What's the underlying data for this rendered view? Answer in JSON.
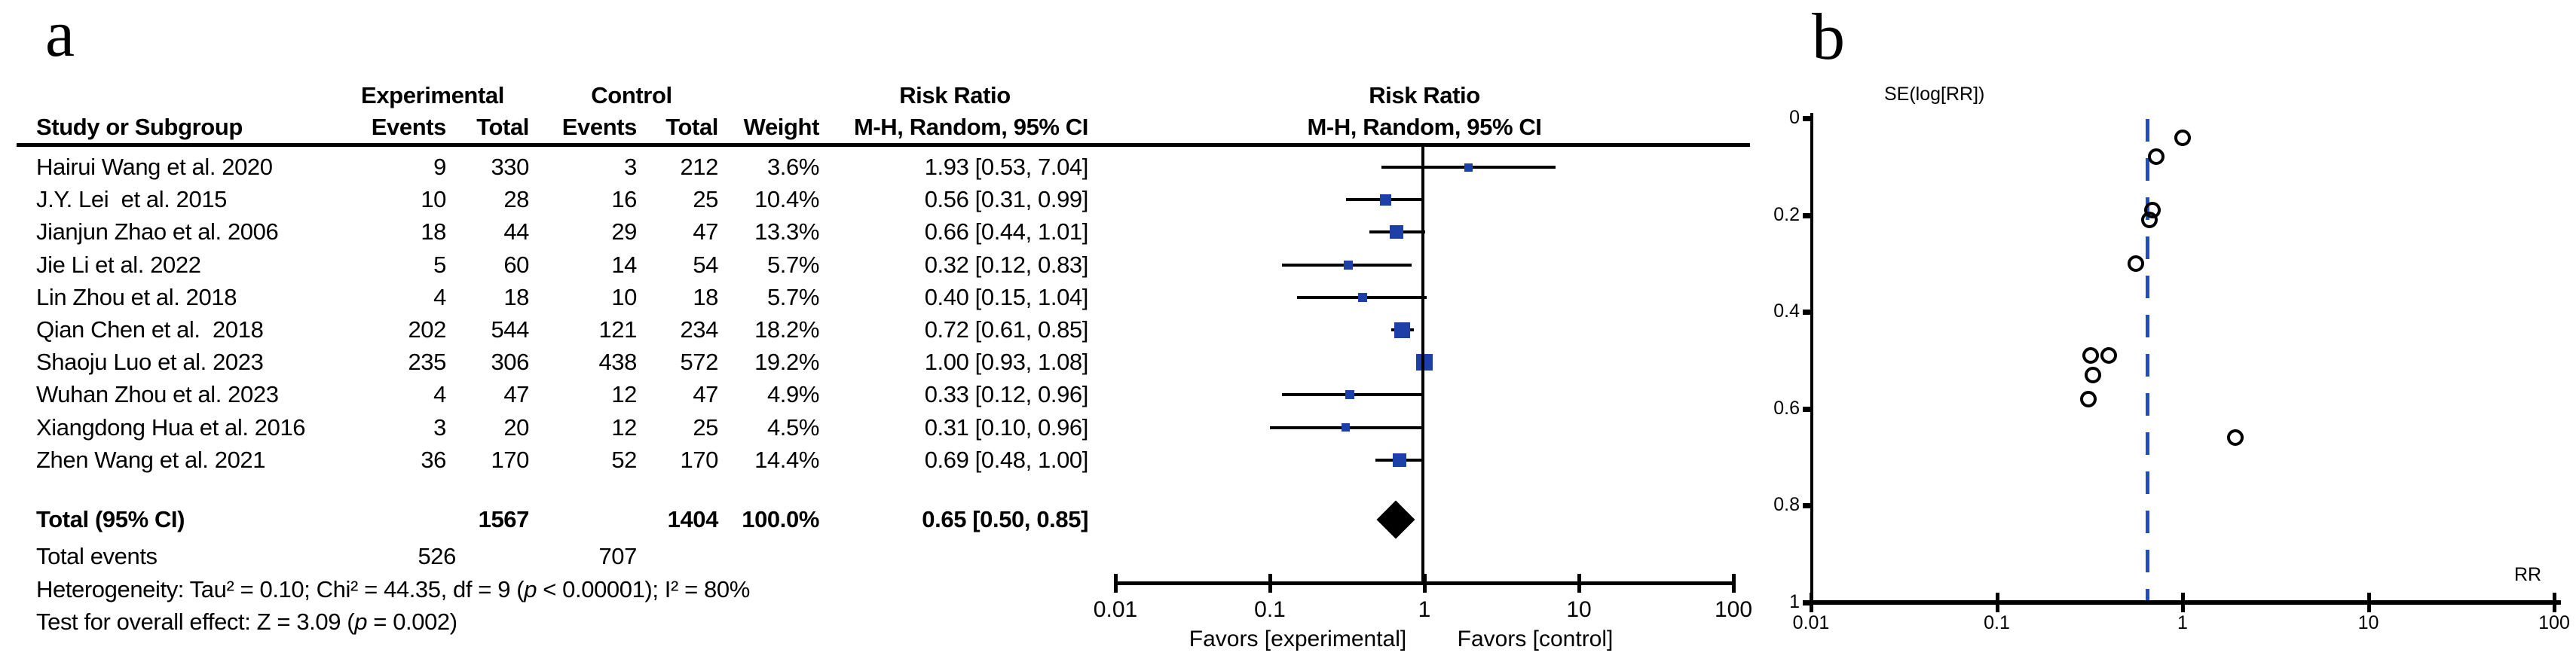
{
  "colors": {
    "marker_blue": "#1c3fa8",
    "funnel_dash_blue": "#1d4fbe",
    "line_black": "#000000"
  },
  "panels": {
    "a": {
      "label": "a",
      "table": {
        "group_headers": {
          "experimental": "Experimental",
          "control": "Control",
          "risk_ratio": "Risk Ratio"
        },
        "col_headers": {
          "study": "Study or Subgroup",
          "exp_events": "Events",
          "exp_total": "Total",
          "ctl_events": "Events",
          "ctl_total": "Total",
          "weight": "Weight",
          "mh": "M-H, Random, 95% CI"
        },
        "plot_header": {
          "line1": "Risk Ratio",
          "line2": "M-H, Random, 95% CI"
        },
        "total_row": {
          "label": "Total (95% CI)",
          "exp_total": "1567",
          "ctl_total": "1404",
          "weight": "100.0%",
          "rr_ci_text": "0.65 [0.50, 0.85]"
        },
        "total_events": {
          "label": "Total events",
          "exp": "526",
          "ctl": "707"
        },
        "heterogeneity": {
          "pre": "Heterogeneity: Tau² = 0.10; Chi² = 44.35, df = 9 (",
          "p": "p",
          "post": " < 0.00001); I² = 80%"
        },
        "overall_effect": {
          "pre": "Test for overall effect: Z = 3.09 (",
          "p": "p",
          "post": " = 0.002)"
        }
      },
      "axis": {
        "favors_left": "Favors [experimental]",
        "favors_right": "Favors [control]"
      }
    },
    "b": {
      "label": "b",
      "ylabel": "SE(log[RR])",
      "xlabel": "RR"
    }
  },
  "chart_data": [
    {
      "type": "forest",
      "effect_measure": "Risk Ratio",
      "method": "M-H, Random, 95% CI",
      "x_scale": "log",
      "x_ticks": [
        0.01,
        0.1,
        1,
        10,
        100
      ],
      "x_tick_labels": [
        "0.01",
        "0.1",
        "1",
        "10",
        "100"
      ],
      "null_line": 1,
      "studies": [
        {
          "study": "Hairui Wang et al. 2020",
          "exp_events": "9",
          "exp_total": "330",
          "ctl_events": "3",
          "ctl_total": "212",
          "weight_text": "3.6%",
          "weight_pct": 3.6,
          "rr": 1.93,
          "ci_low": 0.53,
          "ci_high": 7.04,
          "rr_ci_text": "1.93 [0.53, 7.04]"
        },
        {
          "study": "J.Y. Lei  et al. 2015",
          "exp_events": "10",
          "exp_total": "28",
          "ctl_events": "16",
          "ctl_total": "25",
          "weight_text": "10.4%",
          "weight_pct": 10.4,
          "rr": 0.56,
          "ci_low": 0.31,
          "ci_high": 0.99,
          "rr_ci_text": "0.56 [0.31, 0.99]"
        },
        {
          "study": "Jianjun Zhao et al. 2006",
          "exp_events": "18",
          "exp_total": "44",
          "ctl_events": "29",
          "ctl_total": "47",
          "weight_text": "13.3%",
          "weight_pct": 13.3,
          "rr": 0.66,
          "ci_low": 0.44,
          "ci_high": 1.01,
          "rr_ci_text": "0.66 [0.44, 1.01]"
        },
        {
          "study": "Jie Li et al. 2022",
          "exp_events": "5",
          "exp_total": "60",
          "ctl_events": "14",
          "ctl_total": "54",
          "weight_text": "5.7%",
          "weight_pct": 5.7,
          "rr": 0.32,
          "ci_low": 0.12,
          "ci_high": 0.83,
          "rr_ci_text": "0.32 [0.12, 0.83]"
        },
        {
          "study": "Lin Zhou et al. 2018",
          "exp_events": "4",
          "exp_total": "18",
          "ctl_events": "10",
          "ctl_total": "18",
          "weight_text": "5.7%",
          "weight_pct": 5.7,
          "rr": 0.4,
          "ci_low": 0.15,
          "ci_high": 1.04,
          "rr_ci_text": "0.40 [0.15, 1.04]"
        },
        {
          "study": "Qian Chen et al.  2018",
          "exp_events": "202",
          "exp_total": "544",
          "ctl_events": "121",
          "ctl_total": "234",
          "weight_text": "18.2%",
          "weight_pct": 18.2,
          "rr": 0.72,
          "ci_low": 0.61,
          "ci_high": 0.85,
          "rr_ci_text": "0.72 [0.61, 0.85]"
        },
        {
          "study": "Shaoju Luo et al. 2023",
          "exp_events": "235",
          "exp_total": "306",
          "ctl_events": "438",
          "ctl_total": "572",
          "weight_text": "19.2%",
          "weight_pct": 19.2,
          "rr": 1.0,
          "ci_low": 0.93,
          "ci_high": 1.08,
          "rr_ci_text": "1.00 [0.93, 1.08]"
        },
        {
          "study": "Wuhan Zhou et al. 2023",
          "exp_events": "4",
          "exp_total": "47",
          "ctl_events": "12",
          "ctl_total": "47",
          "weight_text": "4.9%",
          "weight_pct": 4.9,
          "rr": 0.33,
          "ci_low": 0.12,
          "ci_high": 0.96,
          "rr_ci_text": "0.33 [0.12, 0.96]"
        },
        {
          "study": "Xiangdong Hua et al. 2016",
          "exp_events": "3",
          "exp_total": "20",
          "ctl_events": "12",
          "ctl_total": "25",
          "weight_text": "4.5%",
          "weight_pct": 4.5,
          "rr": 0.31,
          "ci_low": 0.1,
          "ci_high": 0.96,
          "rr_ci_text": "0.31 [0.10, 0.96]"
        },
        {
          "study": "Zhen Wang et al. 2021",
          "exp_events": "36",
          "exp_total": "170",
          "ctl_events": "52",
          "ctl_total": "170",
          "weight_text": "14.4%",
          "weight_pct": 14.4,
          "rr": 0.69,
          "ci_low": 0.48,
          "ci_high": 1.0,
          "rr_ci_text": "0.69 [0.48, 1.00]"
        }
      ],
      "total": {
        "rr": 0.65,
        "ci_low": 0.5,
        "ci_high": 0.85
      }
    },
    {
      "type": "scatter",
      "subtype": "funnel",
      "xlabel": "RR",
      "ylabel": "SE(log[RR])",
      "x_scale": "log",
      "x_ticks": [
        0.01,
        0.1,
        1,
        10,
        100
      ],
      "x_tick_labels": [
        "0.01",
        "0.1",
        "1",
        "10",
        "100"
      ],
      "y_ticks": [
        0,
        0.2,
        0.4,
        0.6,
        0.8,
        1
      ],
      "y_tick_labels": [
        "0",
        "0.2",
        "0.4",
        "0.6",
        "0.8",
        "1"
      ],
      "y_axis_inverted": true,
      "pooled_rr": 0.65,
      "points": [
        {
          "rr": 1.93,
          "se": 0.66
        },
        {
          "rr": 0.56,
          "se": 0.3
        },
        {
          "rr": 0.66,
          "se": 0.21
        },
        {
          "rr": 0.32,
          "se": 0.49
        },
        {
          "rr": 0.4,
          "se": 0.49
        },
        {
          "rr": 0.72,
          "se": 0.08
        },
        {
          "rr": 1.0,
          "se": 0.04
        },
        {
          "rr": 0.33,
          "se": 0.53
        },
        {
          "rr": 0.31,
          "se": 0.58
        },
        {
          "rr": 0.69,
          "se": 0.19
        }
      ]
    }
  ]
}
